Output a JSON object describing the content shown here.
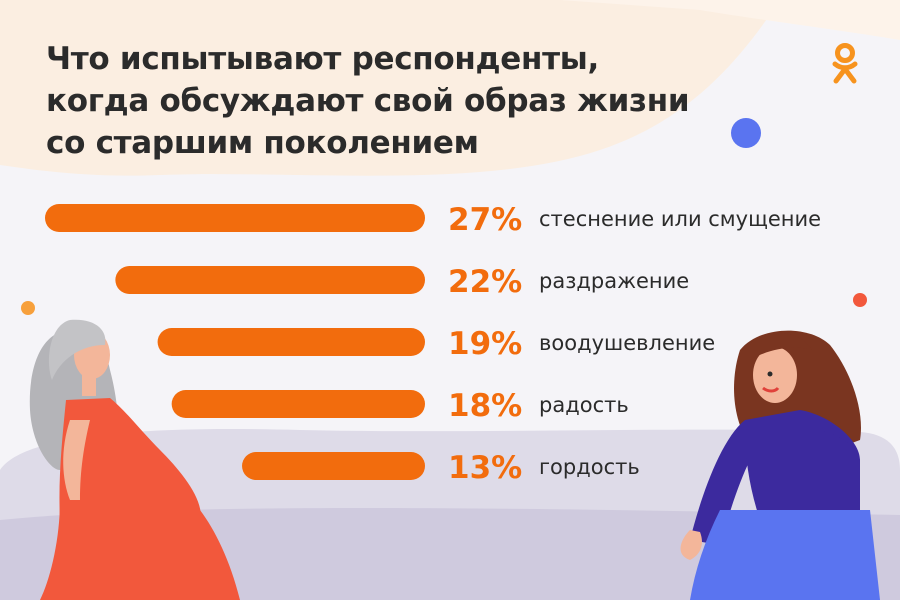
{
  "title_lines": [
    "Что испытывают респонденты,",
    "когда обсуждают свой образ жизни",
    "со старшим поколением"
  ],
  "icons": {
    "logo": "odnoklassniki-logo-icon"
  },
  "colors": {
    "bar": "#f26c0d",
    "accent_blue": "#5a74f0",
    "accent_red": "#f2583c",
    "text": "#2b2b2b"
  },
  "chart_data": {
    "type": "bar",
    "orientation": "horizontal",
    "categories": [
      "стеснение или смущение",
      "раздражение",
      "воодушевление",
      "радость",
      "гордость"
    ],
    "values": [
      27,
      22,
      19,
      18,
      13
    ],
    "value_labels": [
      "27%",
      "22%",
      "19%",
      "18%",
      "13%"
    ],
    "unit": "%",
    "xlim": [
      0,
      27
    ],
    "grid": false,
    "legend": "none"
  }
}
